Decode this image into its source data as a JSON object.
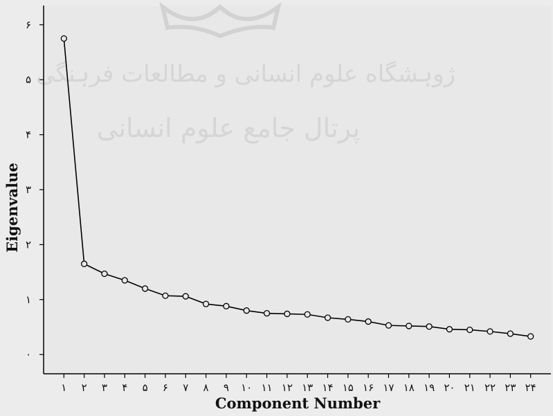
{
  "chart_data": {
    "type": "line",
    "title": "",
    "xlabel": "Component Number",
    "ylabel": "Eigenvalue",
    "x_tick_labels": [
      "۱",
      "۲",
      "۳",
      "۴",
      "۵",
      "۶",
      "۷",
      "۸",
      "۹",
      "۱۰",
      "۱۱",
      "۱۲",
      "۱۳",
      "۱۴",
      "۱۵",
      "۱۶",
      "۱۷",
      "۱۸",
      "۱۹",
      "۲۰",
      "۲۱",
      "۲۲",
      "۲۳",
      "۲۴"
    ],
    "y_tick_labels": [
      "۰",
      "۱",
      "۲",
      "۳",
      "۴",
      "۵",
      "۶"
    ],
    "y_ticks": [
      0,
      1,
      2,
      3,
      4,
      5,
      6
    ],
    "xlim": [
      0,
      25
    ],
    "ylim": [
      -0.35,
      6.35
    ],
    "grid": false,
    "x": [
      1,
      2,
      3,
      4,
      5,
      6,
      7,
      8,
      9,
      10,
      11,
      12,
      13,
      14,
      15,
      16,
      17,
      18,
      19,
      20,
      21,
      22,
      23,
      24
    ],
    "values": [
      5.75,
      1.65,
      1.47,
      1.35,
      1.2,
      1.07,
      1.06,
      0.92,
      0.88,
      0.8,
      0.75,
      0.74,
      0.73,
      0.67,
      0.64,
      0.6,
      0.53,
      0.52,
      0.51,
      0.46,
      0.45,
      0.42,
      0.38,
      0.33
    ],
    "colors": {
      "line": "#000000",
      "plot_background": "#e8e8e8",
      "page_background": "#ececec"
    }
  },
  "watermark": {
    "line1": "ژوہشگاه علوم انسانی و مطالعات فرہنگی",
    "line2": "پرتال جامع علوم انسانی"
  }
}
